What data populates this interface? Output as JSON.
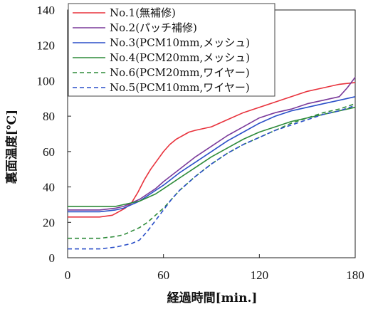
{
  "chart_data": {
    "type": "line",
    "xlabel": "経過時間[min.]",
    "ylabel": "裏面温度[℃]",
    "xlim": [
      0,
      180
    ],
    "ylim": [
      0,
      140
    ],
    "xticks": [
      0,
      60,
      120,
      180
    ],
    "yticks": [
      0,
      20,
      40,
      60,
      80,
      100,
      120,
      140
    ],
    "grid": "none",
    "legend_position": "top-left",
    "series": [
      {
        "name": "No.1(無補修)",
        "color": "#e8323c",
        "dash": "solid",
        "x": [
          0,
          10,
          20,
          28,
          32,
          36,
          40,
          44,
          48,
          52,
          56,
          60,
          64,
          68,
          72,
          76,
          80,
          90,
          100,
          110,
          120,
          130,
          140,
          150,
          160,
          170,
          180
        ],
        "y": [
          23,
          23,
          23,
          24,
          26,
          28,
          31,
          37,
          44,
          50,
          55,
          60,
          64,
          67,
          69,
          71,
          72,
          74,
          78,
          82,
          85,
          88,
          91,
          94,
          96,
          98,
          99
        ]
      },
      {
        "name": "No.2(パッチ補修)",
        "color": "#7a3a9a",
        "dash": "solid",
        "x": [
          0,
          10,
          20,
          30,
          35,
          40,
          45,
          50,
          55,
          60,
          70,
          80,
          90,
          100,
          110,
          120,
          130,
          140,
          150,
          160,
          165,
          170,
          175,
          180
        ],
        "y": [
          27,
          27,
          27,
          28,
          29,
          31,
          33,
          36,
          39,
          43,
          50,
          57,
          63,
          69,
          74,
          79,
          82,
          84,
          87,
          89,
          90,
          91,
          96,
          102
        ]
      },
      {
        "name": "No.3(PCM10mm,メッシュ)",
        "color": "#2a4fc8",
        "dash": "solid",
        "x": [
          0,
          10,
          20,
          30,
          35,
          40,
          45,
          50,
          55,
          60,
          70,
          80,
          90,
          100,
          110,
          120,
          130,
          140,
          150,
          160,
          170,
          180
        ],
        "y": [
          26,
          26,
          26,
          27,
          28,
          30,
          32,
          35,
          38,
          41,
          48,
          54,
          60,
          66,
          71,
          76,
          80,
          83,
          85,
          87,
          89,
          91
        ]
      },
      {
        "name": "No.4(PCM20mm,メッシュ)",
        "color": "#2e8b3a",
        "dash": "solid",
        "x": [
          0,
          10,
          20,
          30,
          35,
          40,
          45,
          50,
          55,
          60,
          70,
          80,
          90,
          100,
          110,
          120,
          130,
          140,
          150,
          160,
          170,
          180
        ],
        "y": [
          29,
          29,
          29,
          29,
          30,
          31,
          32,
          34,
          36,
          39,
          45,
          51,
          57,
          62,
          67,
          71,
          74,
          77,
          79,
          81,
          83,
          85
        ]
      },
      {
        "name": "No.6(PCM20mm,ワイヤー)",
        "color": "#2e8b3a",
        "dash": "dashed",
        "x": [
          0,
          10,
          20,
          30,
          35,
          40,
          45,
          50,
          55,
          60,
          65,
          70,
          80,
          90,
          100,
          110,
          120,
          130,
          140,
          150,
          160,
          170,
          180
        ],
        "y": [
          11,
          11,
          11,
          12,
          13,
          15,
          17,
          20,
          24,
          28,
          33,
          38,
          46,
          53,
          59,
          64,
          68,
          72,
          76,
          79,
          82,
          84,
          87
        ]
      },
      {
        "name": "No.5(PCM10mm,ワイヤー)",
        "color": "#2a4fc8",
        "dash": "dashed",
        "x": [
          0,
          10,
          20,
          30,
          35,
          40,
          45,
          50,
          55,
          60,
          65,
          70,
          80,
          90,
          100,
          110,
          120,
          130,
          140,
          150,
          160,
          170,
          180
        ],
        "y": [
          5,
          5,
          5,
          6,
          7,
          8,
          10,
          15,
          21,
          27,
          33,
          38,
          46,
          53,
          59,
          64,
          68,
          72,
          75,
          78,
          81,
          83,
          86
        ]
      }
    ]
  }
}
